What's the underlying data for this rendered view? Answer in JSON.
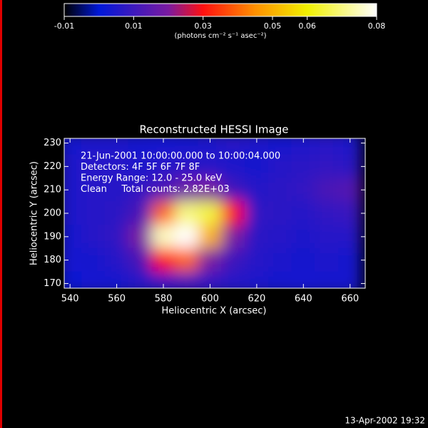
{
  "chart_data": {
    "type": "heatmap",
    "title": "Reconstructed HESSI Image",
    "annotations": [
      "21-Jun-2001 10:00:00.000 to 10:00:04.000",
      "Detectors: 4F 5F 6F 7F 8F",
      "Energy Range: 12.0 - 25.0 keV",
      "Clean     Total counts: 2.82E+03"
    ],
    "xlabel": "Heliocentric X (arcsec)",
    "ylabel": "Heliocentric Y (arcsec)",
    "x": [
      540,
      550,
      560,
      570,
      580,
      590,
      600,
      610,
      620,
      630,
      640,
      650,
      660
    ],
    "y": [
      230,
      220,
      210,
      200,
      190,
      180,
      170
    ],
    "z": [
      [
        0.004,
        0.005,
        0.005,
        0.004,
        0.003,
        0.004,
        0.005,
        0.006,
        0.005,
        0.004,
        0.005,
        0.006,
        0.005
      ],
      [
        0.005,
        0.006,
        0.006,
        0.005,
        0.006,
        0.007,
        0.006,
        0.005,
        0.004,
        0.006,
        0.007,
        0.008,
        0.007
      ],
      [
        0.005,
        0.006,
        0.006,
        0.008,
        0.012,
        0.018,
        0.02,
        0.01,
        0.006,
        0.007,
        0.008,
        0.012,
        0.014
      ],
      [
        0.005,
        0.006,
        0.007,
        0.012,
        0.04,
        0.07,
        0.065,
        0.03,
        0.008,
        0.007,
        0.006,
        0.008,
        0.009
      ],
      [
        0.004,
        0.006,
        0.008,
        0.02,
        0.075,
        0.08,
        0.05,
        0.02,
        0.007,
        0.006,
        0.005,
        0.006,
        0.006
      ],
      [
        0.003,
        0.004,
        0.006,
        0.012,
        0.03,
        0.04,
        0.02,
        0.01,
        0.006,
        0.005,
        0.004,
        0.005,
        0.004
      ],
      [
        0.002,
        0.003,
        0.004,
        0.006,
        0.008,
        0.01,
        0.008,
        0.006,
        0.005,
        0.004,
        0.003,
        0.004,
        0.004
      ]
    ],
    "xlim": [
      537.5,
      666.5
    ],
    "xticks": [
      540,
      560,
      580,
      600,
      620,
      640,
      660
    ],
    "ylim": [
      168,
      232
    ],
    "yticks": [
      170,
      180,
      190,
      200,
      210,
      220,
      230
    ],
    "colorbar": {
      "label": "(photons cm⁻² s⁻¹ asec⁻²)",
      "zlim": [
        -0.01,
        0.08
      ],
      "ticks": [
        -0.01,
        0.01,
        0.03,
        0.05,
        0.06,
        0.08
      ]
    },
    "colorscale": [
      [
        -0.01,
        "#000000"
      ],
      [
        0.0,
        "#0018d8"
      ],
      [
        0.02,
        "#7a1aa0"
      ],
      [
        0.03,
        "#ff1010"
      ],
      [
        0.045,
        "#ff9000"
      ],
      [
        0.06,
        "#f0f000"
      ],
      [
        0.08,
        "#ffffff"
      ]
    ],
    "timestamp": "13-Apr-2002 19:32"
  }
}
